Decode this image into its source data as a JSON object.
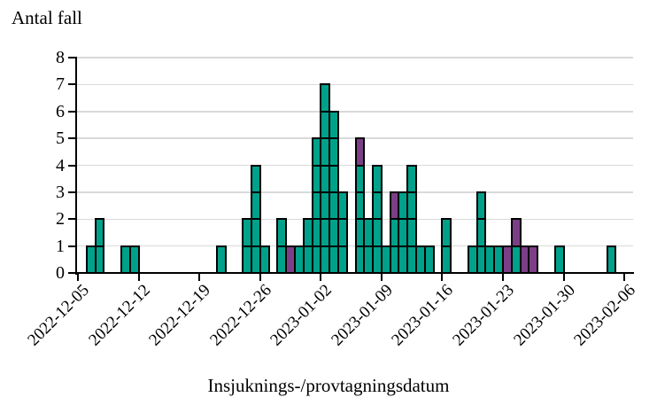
{
  "page": {
    "background": "#FFFFFF"
  },
  "chart_data": {
    "type": "bar",
    "stacked": true,
    "orientation": "vertical",
    "title": "",
    "ylabel": "Antal fall",
    "xlabel": "Insjuknings-/provtagningsdatum",
    "ylim": [
      0,
      8
    ],
    "ytick_labels": [
      "0",
      "1",
      "2",
      "3",
      "4",
      "5",
      "6",
      "7",
      "8"
    ],
    "grid": "horizontal",
    "gridline_color": "#D9D9D9",
    "axis_color": "#000000",
    "cell_border_color": "#000000",
    "legend": "none",
    "x_axis": {
      "start_date": "2022-12-05",
      "tick_every_days": 7,
      "tick_labels": [
        "2022-12-05",
        "2022-12-12",
        "2022-12-19",
        "2022-12-26",
        "2023-01-02",
        "2023-01-09",
        "2023-01-16",
        "2023-01-23",
        "2023-01-30",
        "2023-02-06"
      ]
    },
    "series": [
      {
        "name": "teal-cases",
        "color": "#00A18A",
        "stack_position": "bottom"
      },
      {
        "name": "purple-cases",
        "color": "#7C3F87",
        "stack_position": "top"
      }
    ],
    "bars": [
      {
        "date": "2022-12-06",
        "teal": 1,
        "purple": 0
      },
      {
        "date": "2022-12-07",
        "teal": 2,
        "purple": 0
      },
      {
        "date": "2022-12-10",
        "teal": 1,
        "purple": 0
      },
      {
        "date": "2022-12-11",
        "teal": 1,
        "purple": 0
      },
      {
        "date": "2022-12-21",
        "teal": 1,
        "purple": 0
      },
      {
        "date": "2022-12-24",
        "teal": 2,
        "purple": 0
      },
      {
        "date": "2022-12-25",
        "teal": 4,
        "purple": 0
      },
      {
        "date": "2022-12-26",
        "teal": 1,
        "purple": 0
      },
      {
        "date": "2022-12-28",
        "teal": 2,
        "purple": 0
      },
      {
        "date": "2022-12-29",
        "teal": 0,
        "purple": 1
      },
      {
        "date": "2022-12-30",
        "teal": 1,
        "purple": 0
      },
      {
        "date": "2022-12-31",
        "teal": 2,
        "purple": 0
      },
      {
        "date": "2023-01-01",
        "teal": 5,
        "purple": 0
      },
      {
        "date": "2023-01-02",
        "teal": 7,
        "purple": 0
      },
      {
        "date": "2023-01-03",
        "teal": 6,
        "purple": 0
      },
      {
        "date": "2023-01-04",
        "teal": 3,
        "purple": 0
      },
      {
        "date": "2023-01-06",
        "teal": 4,
        "purple": 1
      },
      {
        "date": "2023-01-07",
        "teal": 2,
        "purple": 0
      },
      {
        "date": "2023-01-08",
        "teal": 4,
        "purple": 0
      },
      {
        "date": "2023-01-09",
        "teal": 1,
        "purple": 0
      },
      {
        "date": "2023-01-10",
        "teal": 2,
        "purple": 1
      },
      {
        "date": "2023-01-11",
        "teal": 3,
        "purple": 0
      },
      {
        "date": "2023-01-12",
        "teal": 4,
        "purple": 0
      },
      {
        "date": "2023-01-13",
        "teal": 1,
        "purple": 0
      },
      {
        "date": "2023-01-14",
        "teal": 1,
        "purple": 0
      },
      {
        "date": "2023-01-16",
        "teal": 2,
        "purple": 0
      },
      {
        "date": "2023-01-19",
        "teal": 1,
        "purple": 0
      },
      {
        "date": "2023-01-20",
        "teal": 3,
        "purple": 0
      },
      {
        "date": "2023-01-21",
        "teal": 1,
        "purple": 0
      },
      {
        "date": "2023-01-22",
        "teal": 1,
        "purple": 0
      },
      {
        "date": "2023-01-23",
        "teal": 0,
        "purple": 1
      },
      {
        "date": "2023-01-24",
        "teal": 1,
        "purple": 1
      },
      {
        "date": "2023-01-25",
        "teal": 0,
        "purple": 1
      },
      {
        "date": "2023-01-26",
        "teal": 0,
        "purple": 1
      },
      {
        "date": "2023-01-29",
        "teal": 1,
        "purple": 0
      },
      {
        "date": "2023-02-04",
        "teal": 1,
        "purple": 0
      }
    ]
  }
}
